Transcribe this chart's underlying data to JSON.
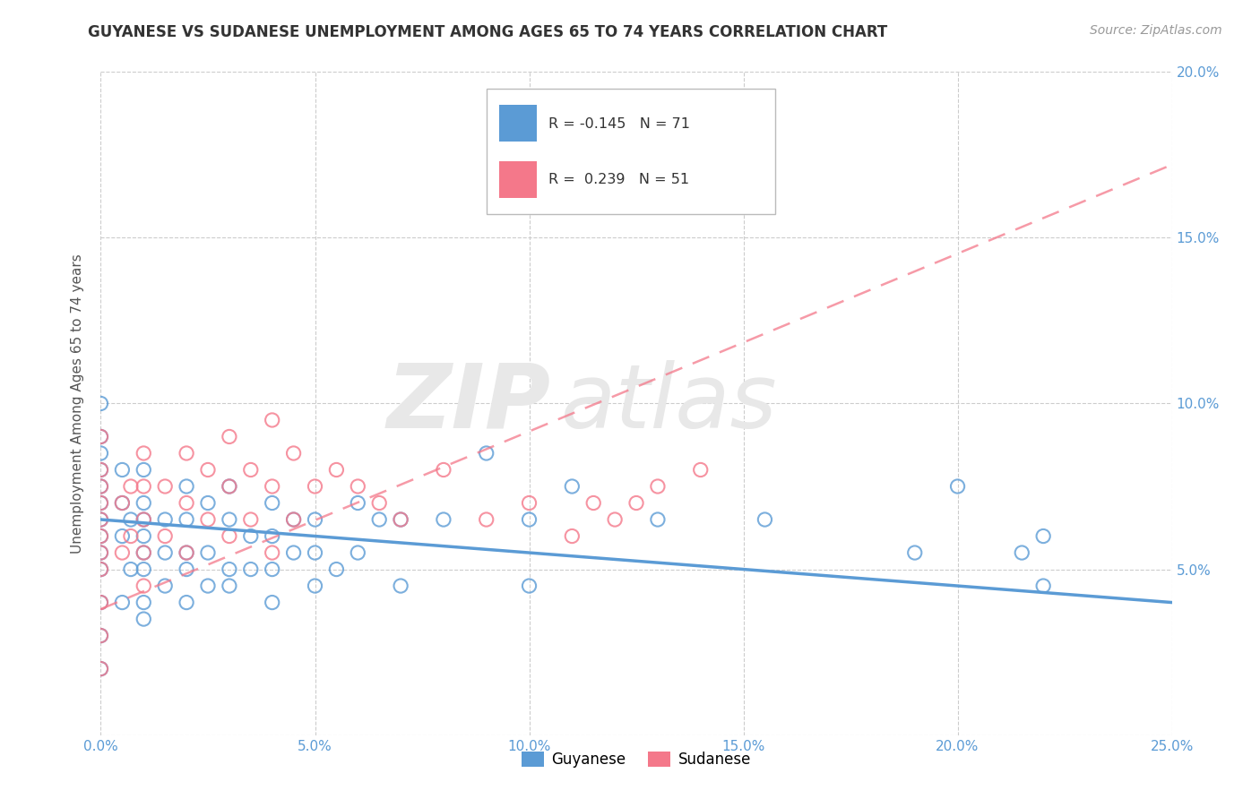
{
  "title": "GUYANESE VS SUDANESE UNEMPLOYMENT AMONG AGES 65 TO 74 YEARS CORRELATION CHART",
  "source": "Source: ZipAtlas.com",
  "ylabel": "Unemployment Among Ages 65 to 74 years",
  "xlim": [
    0.0,
    0.25
  ],
  "ylim": [
    0.0,
    0.2
  ],
  "xticks": [
    0.0,
    0.05,
    0.1,
    0.15,
    0.2,
    0.25
  ],
  "yticks": [
    0.0,
    0.05,
    0.1,
    0.15,
    0.2
  ],
  "xticklabels": [
    "0.0%",
    "5.0%",
    "10.0%",
    "15.0%",
    "20.0%",
    "25.0%"
  ],
  "yticklabels_right": [
    "",
    "5.0%",
    "10.0%",
    "15.0%",
    "20.0%"
  ],
  "legend_blue_label": "Guyanese",
  "legend_pink_label": "Sudanese",
  "R_blue": -0.145,
  "N_blue": 71,
  "R_pink": 0.239,
  "N_pink": 51,
  "blue_color": "#5b9bd5",
  "pink_color": "#f4788a",
  "watermark_zip": "ZIP",
  "watermark_atlas": "atlas",
  "blue_line_x": [
    0.0,
    0.25
  ],
  "blue_line_y": [
    0.065,
    0.04
  ],
  "pink_line_x": [
    0.0,
    0.25
  ],
  "pink_line_y": [
    0.038,
    0.172
  ],
  "blue_scatter_x": [
    0.0,
    0.0,
    0.0,
    0.0,
    0.0,
    0.0,
    0.0,
    0.0,
    0.0,
    0.0,
    0.0,
    0.0,
    0.0,
    0.005,
    0.005,
    0.005,
    0.005,
    0.007,
    0.007,
    0.01,
    0.01,
    0.01,
    0.01,
    0.01,
    0.01,
    0.01,
    0.01,
    0.015,
    0.015,
    0.015,
    0.02,
    0.02,
    0.02,
    0.02,
    0.02,
    0.025,
    0.025,
    0.025,
    0.03,
    0.03,
    0.03,
    0.03,
    0.035,
    0.035,
    0.04,
    0.04,
    0.04,
    0.04,
    0.045,
    0.045,
    0.05,
    0.05,
    0.05,
    0.055,
    0.06,
    0.06,
    0.065,
    0.07,
    0.07,
    0.08,
    0.09,
    0.1,
    0.1,
    0.11,
    0.13,
    0.155,
    0.19,
    0.2,
    0.215,
    0.22,
    0.22
  ],
  "blue_scatter_y": [
    0.02,
    0.03,
    0.04,
    0.05,
    0.055,
    0.06,
    0.065,
    0.07,
    0.075,
    0.08,
    0.085,
    0.09,
    0.1,
    0.04,
    0.06,
    0.07,
    0.08,
    0.05,
    0.065,
    0.035,
    0.04,
    0.05,
    0.055,
    0.06,
    0.065,
    0.07,
    0.08,
    0.045,
    0.055,
    0.065,
    0.04,
    0.05,
    0.055,
    0.065,
    0.075,
    0.045,
    0.055,
    0.07,
    0.045,
    0.05,
    0.065,
    0.075,
    0.05,
    0.06,
    0.04,
    0.05,
    0.06,
    0.07,
    0.055,
    0.065,
    0.045,
    0.055,
    0.065,
    0.05,
    0.055,
    0.07,
    0.065,
    0.045,
    0.065,
    0.065,
    0.085,
    0.045,
    0.065,
    0.075,
    0.065,
    0.065,
    0.055,
    0.075,
    0.055,
    0.06,
    0.045
  ],
  "pink_scatter_x": [
    0.0,
    0.0,
    0.0,
    0.0,
    0.0,
    0.0,
    0.0,
    0.0,
    0.0,
    0.0,
    0.0,
    0.005,
    0.005,
    0.007,
    0.007,
    0.01,
    0.01,
    0.01,
    0.01,
    0.01,
    0.015,
    0.015,
    0.02,
    0.02,
    0.02,
    0.025,
    0.025,
    0.03,
    0.03,
    0.03,
    0.035,
    0.035,
    0.04,
    0.04,
    0.04,
    0.045,
    0.045,
    0.05,
    0.055,
    0.06,
    0.065,
    0.07,
    0.08,
    0.09,
    0.1,
    0.11,
    0.115,
    0.12,
    0.125,
    0.13,
    0.14
  ],
  "pink_scatter_y": [
    0.02,
    0.03,
    0.04,
    0.05,
    0.055,
    0.06,
    0.065,
    0.07,
    0.075,
    0.08,
    0.09,
    0.055,
    0.07,
    0.06,
    0.075,
    0.045,
    0.055,
    0.065,
    0.075,
    0.085,
    0.06,
    0.075,
    0.055,
    0.07,
    0.085,
    0.065,
    0.08,
    0.06,
    0.075,
    0.09,
    0.065,
    0.08,
    0.055,
    0.075,
    0.095,
    0.065,
    0.085,
    0.075,
    0.08,
    0.075,
    0.07,
    0.065,
    0.08,
    0.065,
    0.07,
    0.06,
    0.07,
    0.065,
    0.07,
    0.075,
    0.08
  ]
}
